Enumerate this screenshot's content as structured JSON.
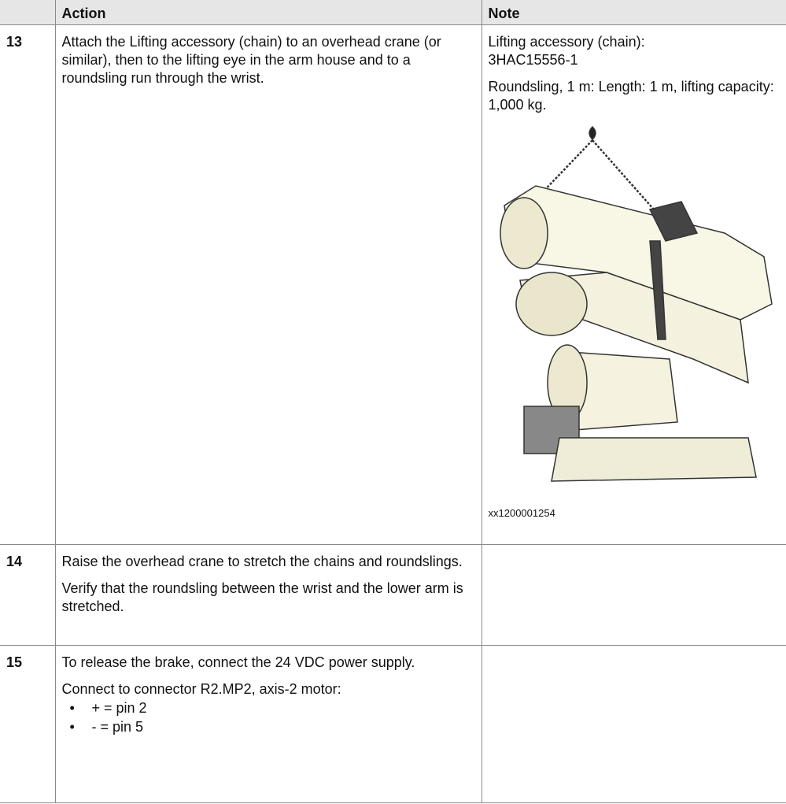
{
  "table": {
    "headers": [
      "Action",
      "Note"
    ],
    "rows": [
      {
        "step": "13",
        "action": [
          "Attach the Lifting accessory (chain) to an overhead crane (or similar), then to the lifting eye in the arm house and to a roundsling run through the wrist."
        ],
        "note": {
          "items": [
            [
              "Lifting accessory (chain):",
              "3HAC15556-1"
            ],
            [
              "Roundsling, 1 m: Length: 1 m, lifting capacity: 1,000 kg."
            ]
          ],
          "figure_caption": "xx1200001254"
        }
      },
      {
        "step": "14",
        "action": [
          "Raise the overhead crane to stretch the chains and roundslings.",
          "Verify that the roundsling between the wrist and the lower arm is stretched."
        ]
      },
      {
        "step": "15",
        "action": [
          "To release the brake, connect the 24 VDC power supply.",
          "Connect to connector R2.MP2, axis-2 motor:"
        ],
        "bullets": [
          "+ = pin 2",
          "- = pin 5"
        ]
      }
    ]
  }
}
